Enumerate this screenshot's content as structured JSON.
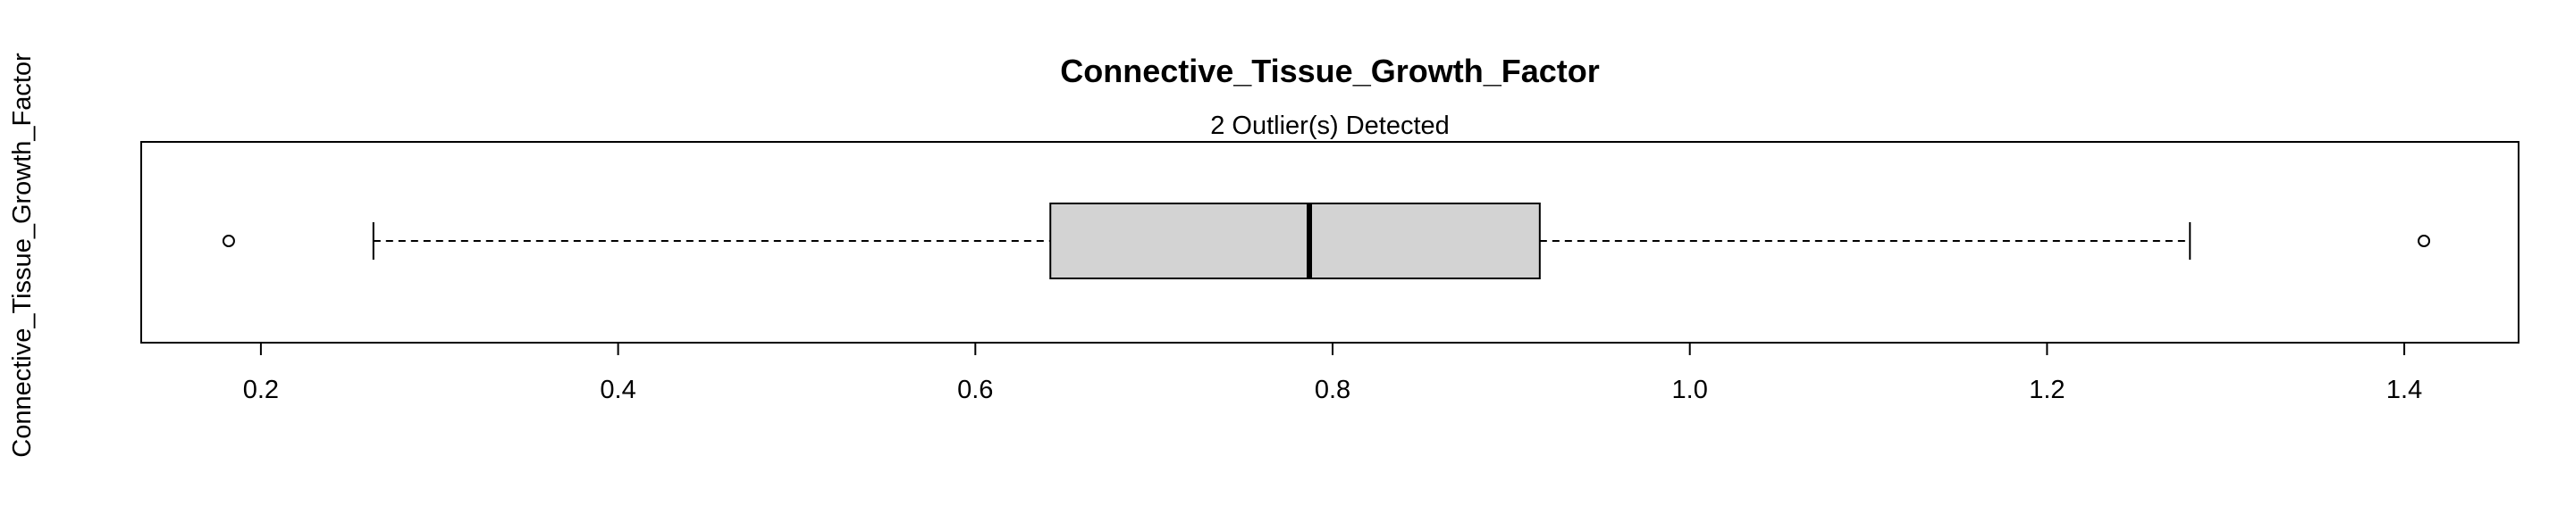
{
  "chart_data": {
    "type": "boxplot",
    "orientation": "horizontal",
    "title": "Connective_Tissue_Growth_Factor",
    "subtitle": "2 Outlier(s) Detected",
    "xlabel": "",
    "ylabel": "Connective_Tissue_Growth_Factor",
    "xlim": [
      0.133,
      1.464
    ],
    "x_ticks": [
      0.2,
      0.4,
      0.6,
      0.8,
      1.0,
      1.2,
      1.4
    ],
    "x_tick_labels": [
      "0.2",
      "0.4",
      "0.6",
      "0.8",
      "1.0",
      "1.2",
      "1.4"
    ],
    "box": {
      "whisker_low": 0.263,
      "q1": 0.642,
      "median": 0.787,
      "q3": 0.916,
      "whisker_high": 1.28
    },
    "outliers": [
      0.182,
      1.411
    ],
    "grid": false,
    "colors": {
      "box_fill": "#d3d3d3",
      "stroke": "#000000"
    }
  }
}
